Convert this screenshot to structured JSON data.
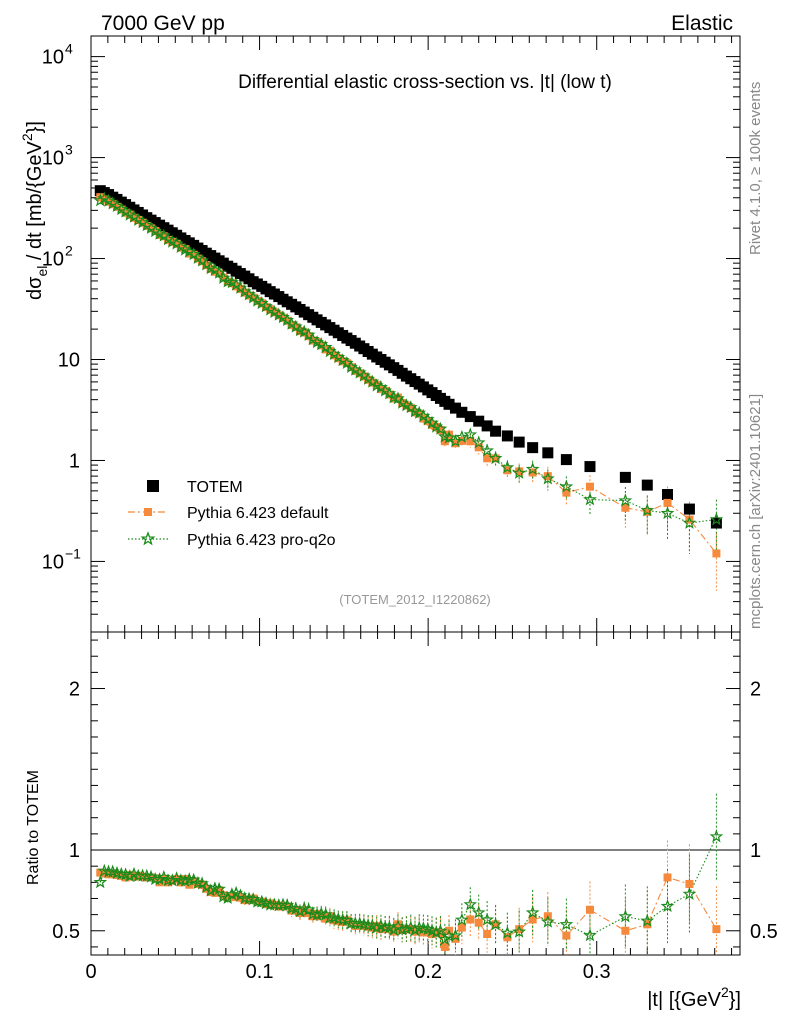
{
  "header": {
    "left": "7000 GeV pp",
    "right": "Elastic"
  },
  "side_labels": {
    "top": "Rivet 4.1.0, ≥ 100k events",
    "bottom": "mcplots.cern.ch [arXiv:2401.10621]"
  },
  "watermark": "(TOTEM_2012_I1220862)",
  "colors": {
    "totem": "#000000",
    "default": "#f58a3c",
    "proq2o": "#1a8a1a"
  },
  "chart_data": [
    {
      "type": "scatter",
      "title": "Differential elastic cross-section vs. |t| (low t)",
      "ylabel_main": "dσ",
      "ylabel_sub": "el",
      "ylabel_rest": " / dt [mb/{GeV",
      "ylabel_sup": "2",
      "ylabel_end": "}]",
      "yscale": "log",
      "xlim": [
        0,
        0.385
      ],
      "ylim": [
        0.02,
        16000
      ],
      "yticks": [
        {
          "v": 0.1,
          "base": "10",
          "exp": "−1"
        },
        {
          "v": 1,
          "base": "1",
          "exp": ""
        },
        {
          "v": 10,
          "base": "10",
          "exp": ""
        },
        {
          "v": 100,
          "base": "10",
          "exp": "2"
        },
        {
          "v": 1000,
          "base": "10",
          "exp": "3"
        },
        {
          "v": 10000,
          "base": "10",
          "exp": "4"
        }
      ],
      "legend": [
        "TOTEM",
        "Pythia 6.423 default",
        "Pythia 6.423 pro-q2o"
      ],
      "legend_position": "lower-left",
      "series": [
        {
          "name": "TOTEM",
          "marker": "square",
          "x": [
            0.0055,
            0.0079,
            0.0104,
            0.0129,
            0.0154,
            0.018,
            0.0205,
            0.023,
            0.0255,
            0.028,
            0.0306,
            0.0331,
            0.0356,
            0.0381,
            0.0407,
            0.0432,
            0.0457,
            0.0482,
            0.0508,
            0.0533,
            0.0558,
            0.0583,
            0.0609,
            0.0634,
            0.0659,
            0.0684,
            0.071,
            0.0735,
            0.076,
            0.0785,
            0.0811,
            0.0836,
            0.0861,
            0.0886,
            0.0912,
            0.0937,
            0.0962,
            0.0987,
            0.1013,
            0.1038,
            0.1063,
            0.1088,
            0.1114,
            0.1139,
            0.1164,
            0.119,
            0.1215,
            0.124,
            0.1265,
            0.1291,
            0.1316,
            0.1341,
            0.1366,
            0.1392,
            0.1417,
            0.1442,
            0.1467,
            0.1493,
            0.1518,
            0.1543,
            0.1568,
            0.1594,
            0.1619,
            0.1644,
            0.1669,
            0.1695,
            0.172,
            0.1745,
            0.177,
            0.1796,
            0.1821,
            0.1846,
            0.1871,
            0.1897,
            0.1922,
            0.1947,
            0.1972,
            0.1998,
            0.2023,
            0.2048,
            0.2073,
            0.2099,
            0.2124,
            0.2162,
            0.22,
            0.225,
            0.23,
            0.235,
            0.24,
            0.247,
            0.254,
            0.262,
            0.271,
            0.282,
            0.296,
            0.317,
            0.33,
            0.342,
            0.355,
            0.371
          ],
          "y": [
            470,
            450,
            430,
            405,
            385,
            362,
            342,
            322,
            303,
            286,
            270,
            254,
            240,
            227,
            214,
            202,
            191,
            180,
            170,
            160,
            151,
            143,
            135,
            127,
            120,
            113,
            107,
            101,
            95,
            90,
            84,
            80,
            75,
            71,
            67,
            63,
            59,
            56,
            53,
            50,
            47,
            44.5,
            42,
            39.5,
            37.3,
            35.2,
            33.2,
            31.3,
            29.5,
            27.8,
            26.2,
            24.7,
            23.3,
            22.0,
            20.7,
            19.5,
            18.4,
            17.3,
            16.3,
            15.4,
            14.5,
            13.6,
            12.8,
            12.0,
            11.3,
            10.6,
            10.0,
            9.4,
            8.85,
            8.3,
            7.8,
            7.3,
            6.85,
            6.45,
            6.05,
            5.7,
            5.35,
            5.0,
            4.7,
            4.4,
            4.12,
            3.85,
            3.6,
            3.3,
            3.0,
            2.72,
            2.45,
            2.2,
            1.95,
            1.75,
            1.52,
            1.34,
            1.19,
            1.02,
            0.87,
            0.68,
            0.57,
            0.46,
            0.33,
            0.24
          ],
          "yerr": [],
          "ratio": []
        },
        {
          "name": "Pythia 6.423 default",
          "marker": "square-small",
          "line": "dashdot",
          "x": [
            0.0055,
            0.0079,
            0.0104,
            0.0129,
            0.0154,
            0.018,
            0.0205,
            0.023,
            0.0255,
            0.028,
            0.0306,
            0.0331,
            0.0356,
            0.0381,
            0.0407,
            0.0432,
            0.0457,
            0.0482,
            0.0508,
            0.0533,
            0.0558,
            0.0583,
            0.0609,
            0.0634,
            0.0659,
            0.0684,
            0.071,
            0.0735,
            0.076,
            0.0785,
            0.0811,
            0.0836,
            0.0861,
            0.0886,
            0.0912,
            0.0937,
            0.0962,
            0.0987,
            0.1013,
            0.1038,
            0.1063,
            0.1088,
            0.1114,
            0.1139,
            0.1164,
            0.119,
            0.1215,
            0.124,
            0.1265,
            0.1291,
            0.1316,
            0.1341,
            0.1366,
            0.1392,
            0.1417,
            0.1442,
            0.1467,
            0.1493,
            0.1518,
            0.1543,
            0.1568,
            0.1594,
            0.1619,
            0.1644,
            0.1669,
            0.1695,
            0.172,
            0.1745,
            0.177,
            0.1796,
            0.1821,
            0.1846,
            0.1871,
            0.1897,
            0.1922,
            0.1947,
            0.1972,
            0.1998,
            0.2023,
            0.2048,
            0.2073,
            0.2099,
            0.2124,
            0.2162,
            0.22,
            0.225,
            0.23,
            0.235,
            0.24,
            0.247,
            0.254,
            0.262,
            0.271,
            0.282,
            0.296,
            0.317,
            0.33,
            0.342,
            0.355,
            0.371
          ],
          "y": [
            405,
            385,
            365,
            345,
            325,
            305,
            284,
            272,
            253,
            241,
            226,
            210,
            199,
            187,
            171,
            166,
            153,
            146,
            140,
            128,
            124,
            112,
            109,
            100,
            94,
            86,
            79,
            74,
            71,
            65,
            59,
            57,
            53,
            50,
            46,
            43,
            41,
            38,
            36,
            33,
            31.5,
            29.4,
            27.4,
            25.8,
            24.2,
            22.0,
            20.9,
            19.1,
            18.5,
            17.0,
            15.4,
            14.9,
            13.8,
            12.6,
            12.2,
            11.0,
            10.3,
            9.6,
            9.2,
            8.4,
            7.7,
            7.3,
            6.8,
            6.3,
            5.9,
            5.6,
            5.1,
            4.9,
            4.5,
            4.1,
            4.2,
            3.7,
            3.5,
            3.3,
            3.0,
            2.9,
            2.6,
            2.45,
            2.25,
            2.15,
            2.0,
            1.55,
            1.8,
            1.48,
            1.56,
            1.55,
            1.35,
            1.05,
            1.05,
            0.8,
            0.78,
            0.76,
            0.7,
            0.48,
            0.55,
            0.34,
            0.31,
            0.38,
            0.26,
            0.12
          ],
          "yerr": [],
          "ratio": [
            0.86,
            0.855,
            0.85,
            0.85,
            0.845,
            0.84,
            0.83,
            0.845,
            0.835,
            0.84,
            0.835,
            0.83,
            0.83,
            0.825,
            0.8,
            0.82,
            0.8,
            0.81,
            0.82,
            0.8,
            0.82,
            0.785,
            0.805,
            0.79,
            0.785,
            0.76,
            0.74,
            0.735,
            0.75,
            0.72,
            0.705,
            0.71,
            0.71,
            0.705,
            0.69,
            0.69,
            0.7,
            0.68,
            0.68,
            0.665,
            0.67,
            0.66,
            0.65,
            0.655,
            0.65,
            0.625,
            0.63,
            0.61,
            0.625,
            0.61,
            0.59,
            0.605,
            0.59,
            0.575,
            0.59,
            0.565,
            0.56,
            0.555,
            0.565,
            0.545,
            0.53,
            0.535,
            0.53,
            0.525,
            0.52,
            0.53,
            0.51,
            0.52,
            0.51,
            0.495,
            0.54,
            0.505,
            0.51,
            0.51,
            0.495,
            0.505,
            0.49,
            0.49,
            0.48,
            0.49,
            0.485,
            0.4,
            0.5,
            0.45,
            0.52,
            0.57,
            0.55,
            0.48,
            0.54,
            0.46,
            0.51,
            0.57,
            0.59,
            0.47,
            0.63,
            0.5,
            0.54,
            0.83,
            0.79,
            0.51
          ],
          "ratio_err": []
        },
        {
          "name": "Pythia 6.423 pro-q2o",
          "marker": "star",
          "line": "dotted",
          "x": [
            0.0055,
            0.0079,
            0.0104,
            0.0129,
            0.0154,
            0.018,
            0.0205,
            0.023,
            0.0255,
            0.028,
            0.0306,
            0.0331,
            0.0356,
            0.0381,
            0.0407,
            0.0432,
            0.0457,
            0.0482,
            0.0508,
            0.0533,
            0.0558,
            0.0583,
            0.0609,
            0.0634,
            0.0659,
            0.0684,
            0.071,
            0.0735,
            0.076,
            0.0785,
            0.0811,
            0.0836,
            0.0861,
            0.0886,
            0.0912,
            0.0937,
            0.0962,
            0.0987,
            0.1013,
            0.1038,
            0.1063,
            0.1088,
            0.1114,
            0.1139,
            0.1164,
            0.119,
            0.1215,
            0.124,
            0.1265,
            0.1291,
            0.1316,
            0.1341,
            0.1366,
            0.1392,
            0.1417,
            0.1442,
            0.1467,
            0.1493,
            0.1518,
            0.1543,
            0.1568,
            0.1594,
            0.1619,
            0.1644,
            0.1669,
            0.1695,
            0.172,
            0.1745,
            0.177,
            0.1796,
            0.1821,
            0.1846,
            0.1871,
            0.1897,
            0.1922,
            0.1947,
            0.1972,
            0.1998,
            0.2023,
            0.2048,
            0.2073,
            0.2099,
            0.2124,
            0.2162,
            0.22,
            0.225,
            0.23,
            0.235,
            0.24,
            0.247,
            0.254,
            0.262,
            0.271,
            0.282,
            0.296,
            0.317,
            0.33,
            0.342,
            0.355,
            0.371
          ],
          "y": [
            375,
            392,
            372,
            350,
            330,
            308,
            290,
            270,
            258,
            240,
            227,
            213,
            200,
            186,
            175,
            168,
            155,
            146,
            140,
            130,
            122,
            117,
            110,
            101,
            95,
            87,
            80,
            77,
            72,
            64,
            59,
            58,
            55,
            51,
            47,
            44,
            41,
            38,
            36,
            33.5,
            31,
            29.4,
            27.6,
            26.1,
            24.5,
            22.5,
            21.1,
            19.4,
            18.8,
            17.5,
            15.8,
            14.8,
            14.1,
            13.2,
            12.0,
            11.3,
            10.5,
            9.8,
            9.2,
            8.4,
            7.9,
            7.4,
            6.9,
            6.4,
            6.0,
            5.5,
            5.3,
            4.9,
            4.6,
            4.2,
            4.1,
            3.7,
            3.5,
            3.35,
            3.05,
            2.95,
            2.75,
            2.55,
            2.35,
            2.15,
            2.05,
            1.72,
            1.68,
            1.55,
            1.7,
            1.8,
            1.5,
            1.25,
            1.05,
            0.85,
            0.75,
            0.82,
            0.66,
            0.55,
            0.41,
            0.4,
            0.32,
            0.3,
            0.24,
            0.26
          ],
          "yerr": [],
          "ratio": [
            0.8,
            0.87,
            0.865,
            0.865,
            0.857,
            0.851,
            0.848,
            0.838,
            0.851,
            0.839,
            0.841,
            0.839,
            0.833,
            0.819,
            0.818,
            0.832,
            0.812,
            0.811,
            0.824,
            0.812,
            0.808,
            0.818,
            0.815,
            0.795,
            0.792,
            0.77,
            0.748,
            0.762,
            0.758,
            0.711,
            0.702,
            0.725,
            0.733,
            0.718,
            0.701,
            0.698,
            0.695,
            0.679,
            0.679,
            0.67,
            0.66,
            0.661,
            0.657,
            0.661,
            0.657,
            0.639,
            0.636,
            0.62,
            0.637,
            0.63,
            0.603,
            0.599,
            0.605,
            0.6,
            0.58,
            0.58,
            0.571,
            0.566,
            0.564,
            0.545,
            0.545,
            0.544,
            0.539,
            0.533,
            0.531,
            0.519,
            0.53,
            0.521,
            0.52,
            0.506,
            0.526,
            0.507,
            0.511,
            0.519,
            0.504,
            0.518,
            0.514,
            0.51,
            0.5,
            0.489,
            0.498,
            0.447,
            0.467,
            0.47,
            0.567,
            0.662,
            0.612,
            0.568,
            0.538,
            0.486,
            0.493,
            0.612,
            0.555,
            0.539,
            0.471,
            0.588,
            0.561,
            0.652,
            0.727,
            1.083
          ],
          "ratio_err": []
        }
      ]
    },
    {
      "type": "scatter",
      "ylabel": "Ratio to TOTEM",
      "xlabel": "|t| [{GeV",
      "xlabel_sup": "2",
      "xlabel_end": "}]",
      "xlim": [
        0,
        0.385
      ],
      "ylim": [
        0.35,
        2.35
      ],
      "reference_line": 1,
      "xticks": [
        {
          "v": 0,
          "label": "0"
        },
        {
          "v": 0.1,
          "label": "0.1"
        },
        {
          "v": 0.2,
          "label": "0.2"
        },
        {
          "v": 0.3,
          "label": "0.3"
        }
      ],
      "yticks_left": [
        {
          "v": 0.5,
          "label": "0.5"
        },
        {
          "v": 1,
          "label": "1"
        },
        {
          "v": 2,
          "label": "2"
        }
      ]
    }
  ]
}
